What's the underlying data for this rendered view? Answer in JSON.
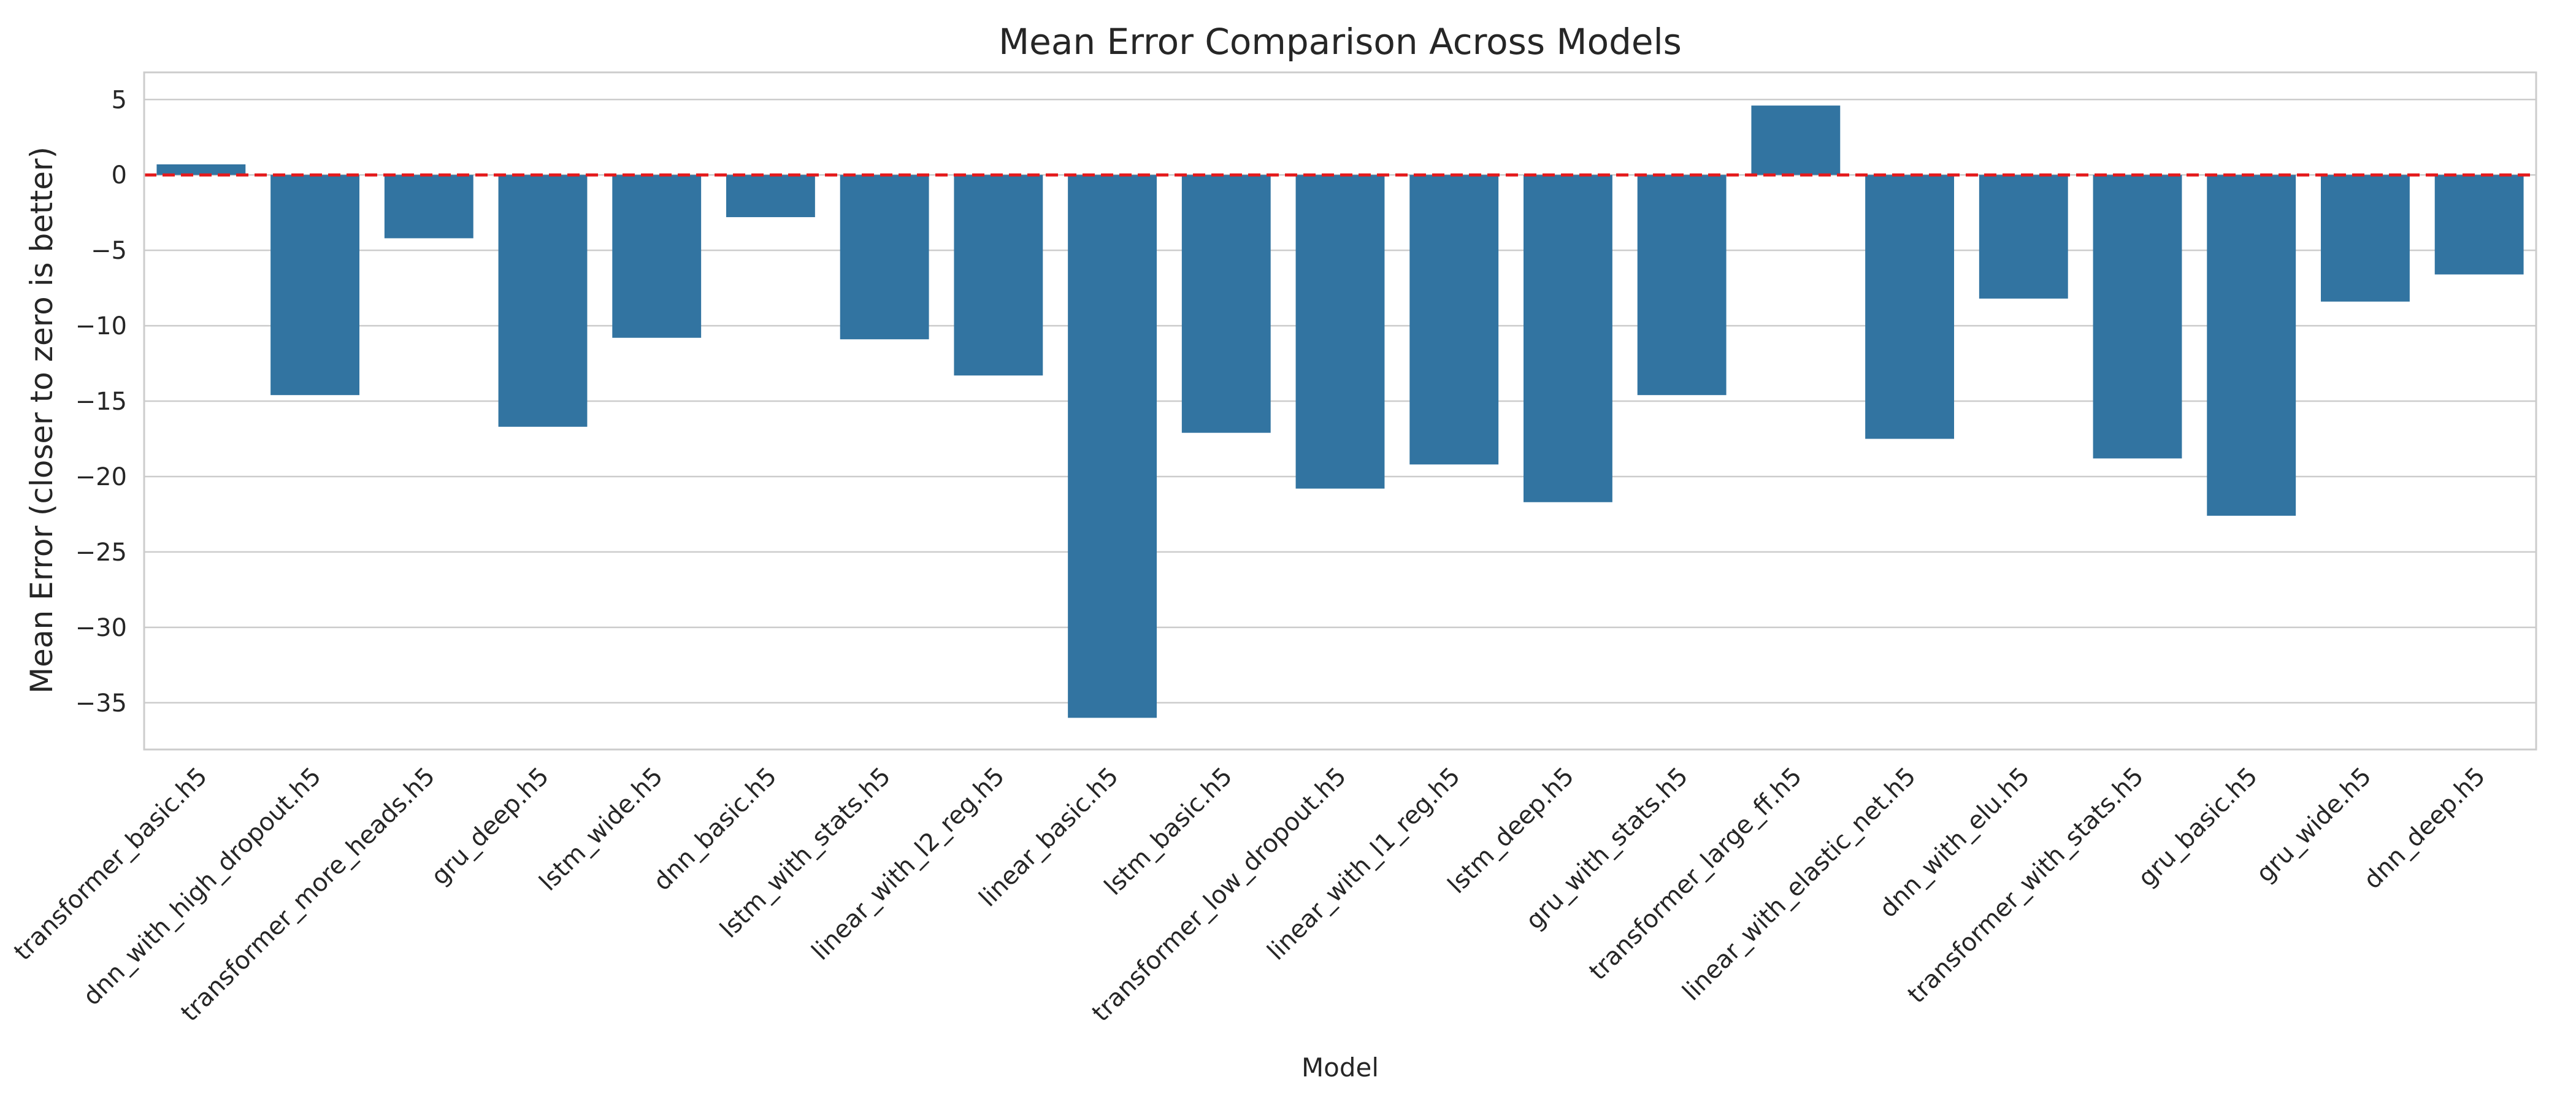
{
  "chart_data": {
    "type": "bar",
    "title": "Mean Error Comparison Across Models",
    "xlabel": "Model",
    "ylabel": "Mean Error (closer to zero is better)",
    "categories": [
      "transformer_basic.h5",
      "dnn_with_high_dropout.h5",
      "transformer_more_heads.h5",
      "gru_deep.h5",
      "lstm_wide.h5",
      "dnn_basic.h5",
      "lstm_with_stats.h5",
      "linear_with_l2_reg.h5",
      "linear_basic.h5",
      "lstm_basic.h5",
      "transformer_low_dropout.h5",
      "linear_with_l1_reg.h5",
      "lstm_deep.h5",
      "gru_with_stats.h5",
      "transformer_large_ff.h5",
      "linear_with_elastic_net.h5",
      "dnn_with_elu.h5",
      "transformer_with_stats.h5",
      "gru_basic.h5",
      "gru_wide.h5",
      "dnn_deep.h5"
    ],
    "values": [
      0.7,
      -14.6,
      -4.2,
      -16.7,
      -10.8,
      -2.8,
      -10.9,
      -13.3,
      -36.0,
      -17.1,
      -20.8,
      -19.2,
      -21.7,
      -14.6,
      4.6,
      -17.5,
      -8.2,
      -18.8,
      -22.6,
      -8.4,
      -6.6
    ],
    "ylim": [
      -38.1,
      6.8
    ],
    "yticks": [
      5,
      0,
      -5,
      -10,
      -15,
      -20,
      -25,
      -30,
      -35
    ],
    "grid": true,
    "reference_line": {
      "y": 0,
      "style": "dashed",
      "color": "#e41a1c"
    },
    "colors": {
      "bar": "#3274a1",
      "grid": "#cccccc",
      "spine": "#cccccc"
    }
  }
}
